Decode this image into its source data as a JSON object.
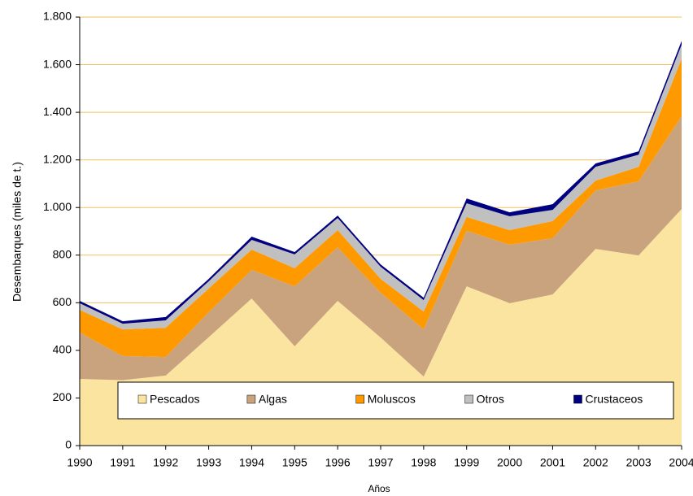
{
  "chart_data": {
    "type": "stacked-area",
    "x_label": "Años",
    "y_label": "Desembarques (miles de t.)",
    "x": [
      1990,
      1991,
      1992,
      1993,
      1994,
      1995,
      1996,
      1997,
      1998,
      1999,
      2000,
      2001,
      2002,
      2003,
      2004
    ],
    "xlim": [
      1990,
      2004
    ],
    "ylim": [
      0,
      1800
    ],
    "yticks": [
      0,
      200,
      400,
      600,
      800,
      {
        "value": 1000,
        "label": "1.000"
      },
      {
        "value": 1200,
        "label": "1.200"
      },
      {
        "value": 1400,
        "label": "1.400"
      },
      {
        "value": 1600,
        "label": "1.600"
      },
      {
        "value": 1800,
        "label": "1.800"
      }
    ],
    "grid": true,
    "legend": "bottom",
    "series": [
      {
        "name": "Pescados",
        "color": "#fbe3a0",
        "values": [
          280,
          275,
          294,
          455,
          618,
          417,
          608,
          454,
          290,
          669,
          598,
          635,
          826,
          799,
          994
        ]
      },
      {
        "name": "Algas",
        "color": "#c9a27e",
        "values": [
          195,
          101,
          78,
          105,
          120,
          252,
          225,
          188,
          198,
          233,
          246,
          236,
          246,
          311,
          389
        ]
      },
      {
        "name": "Moluscos",
        "color": "#ff9900",
        "values": [
          95,
          112,
          123,
          100,
          85,
          76,
          72,
          58,
          75,
          58,
          61,
          72,
          41,
          61,
          242
        ]
      },
      {
        "name": "Otros",
        "color": "#c0c0c0",
        "values": [
          28,
          24,
          31,
          30,
          41,
          58,
          51,
          51,
          48,
          58,
          58,
          47,
          58,
          51,
          59
        ]
      },
      {
        "name": "Crustaceos",
        "color": "#000080",
        "values": [
          10,
          10,
          14,
          10,
          14,
          10,
          10,
          10,
          10,
          20,
          17,
          24,
          14,
          14,
          16
        ]
      }
    ]
  }
}
